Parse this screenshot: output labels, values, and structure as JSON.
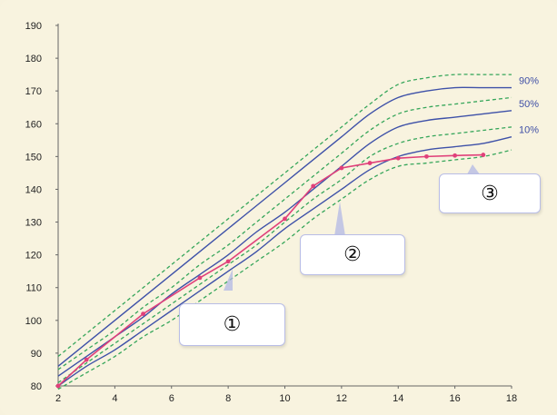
{
  "chart_data": {
    "type": "line",
    "x_ticks": [
      2,
      4,
      6,
      8,
      10,
      12,
      14,
      16,
      18
    ],
    "y_ticks": [
      80,
      90,
      100,
      110,
      120,
      130,
      140,
      150,
      160,
      170,
      180,
      190
    ],
    "xlim": [
      2,
      18
    ],
    "ylim": [
      80,
      190
    ],
    "grid": false,
    "series": [
      {
        "style": "dashed",
        "color": "#36a65a",
        "x": [
          2,
          3,
          4,
          5,
          6,
          7,
          8,
          9,
          10,
          11,
          12,
          13,
          14,
          15,
          16,
          17,
          18
        ],
        "y": [
          89,
          96,
          103,
          110,
          117,
          124,
          131,
          138,
          145,
          152,
          159,
          166,
          172,
          174,
          175,
          175,
          175
        ]
      },
      {
        "style": "solid",
        "color": "#3e51a8",
        "name": "90%",
        "x": [
          2,
          3,
          4,
          5,
          6,
          7,
          8,
          9,
          10,
          11,
          12,
          13,
          14,
          15,
          16,
          17,
          18
        ],
        "y": [
          86,
          93,
          100,
          107,
          114,
          121,
          128,
          135,
          142,
          149,
          156,
          163,
          168,
          170,
          171,
          171,
          171
        ]
      },
      {
        "style": "dashed",
        "color": "#36a65a",
        "x": [
          2,
          3,
          4,
          5,
          6,
          7,
          8,
          9,
          10,
          11,
          12,
          13,
          14,
          15,
          16,
          17,
          18
        ],
        "y": [
          85,
          91,
          97,
          104,
          110,
          117,
          123,
          130,
          137,
          144,
          151,
          158,
          163,
          165,
          166,
          167,
          168
        ]
      },
      {
        "style": "solid",
        "color": "#3e51a8",
        "name": "50%",
        "x": [
          2,
          3,
          4,
          5,
          6,
          7,
          8,
          9,
          10,
          11,
          12,
          13,
          14,
          15,
          16,
          17,
          18
        ],
        "y": [
          83,
          89,
          95,
          101,
          108,
          114,
          120,
          127,
          133,
          140,
          147,
          154,
          159,
          161,
          162,
          163,
          164
        ]
      },
      {
        "style": "dashed",
        "color": "#36a65a",
        "x": [
          2,
          3,
          4,
          5,
          6,
          7,
          8,
          9,
          10,
          11,
          12,
          13,
          14,
          15,
          16,
          17,
          18
        ],
        "y": [
          81,
          87,
          93,
          99,
          105,
          111,
          117,
          123,
          130,
          137,
          143,
          150,
          154,
          156,
          157,
          158,
          159
        ]
      },
      {
        "style": "solid",
        "color": "#3e51a8",
        "name": "10%",
        "x": [
          2,
          3,
          4,
          5,
          6,
          7,
          8,
          9,
          10,
          11,
          12,
          13,
          14,
          15,
          16,
          17,
          18
        ],
        "y": [
          80,
          86,
          91,
          97,
          103,
          109,
          115,
          121,
          128,
          134,
          140,
          146,
          150,
          152,
          153,
          154,
          156
        ]
      },
      {
        "style": "dashed",
        "color": "#36a65a",
        "x": [
          2,
          3,
          4,
          5,
          6,
          7,
          8,
          9,
          10,
          11,
          12,
          13,
          14,
          15,
          16,
          17,
          18
        ],
        "y": [
          79,
          84,
          89,
          95,
          100,
          106,
          112,
          118,
          124,
          131,
          137,
          143,
          147,
          148,
          149,
          150,
          152
        ]
      },
      {
        "style": "markers",
        "color": "#e0407a",
        "x": [
          2,
          3,
          5,
          7,
          8,
          10,
          11,
          12,
          13,
          14,
          15,
          16,
          17
        ],
        "y": [
          80,
          88,
          102,
          113,
          118,
          131,
          141,
          146.5,
          148,
          149.5,
          150,
          150.3,
          150.5
        ]
      }
    ],
    "annotations": [
      "①",
      "②",
      "③"
    ]
  }
}
